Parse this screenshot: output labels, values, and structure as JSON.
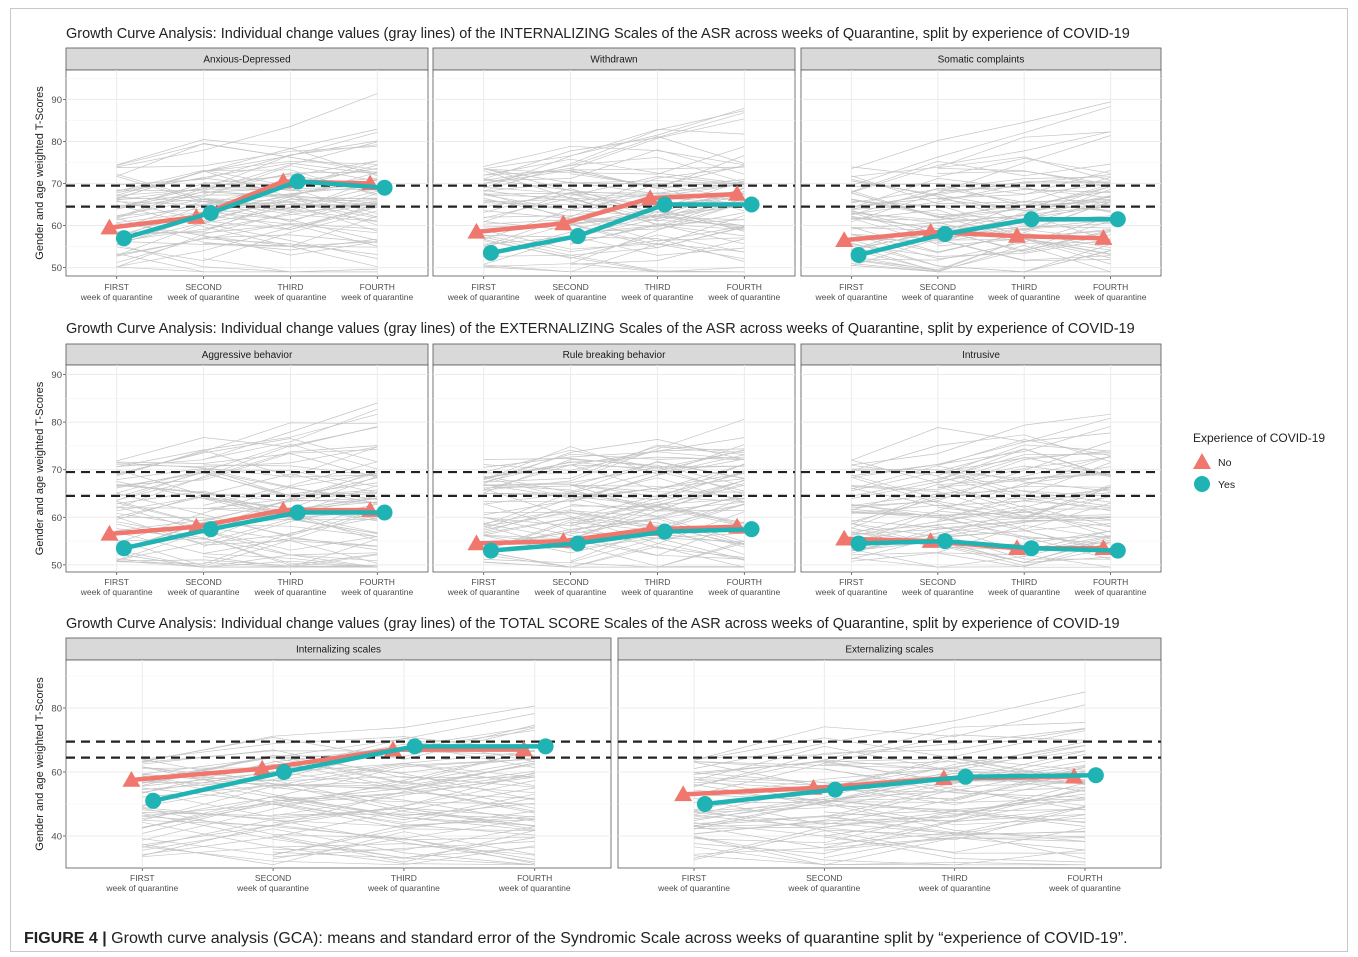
{
  "caption": {
    "label": "FIGURE 4 |",
    "text": "Growth curve analysis (GCA): means and standard error of the Syndromic Scale across weeks of quarantine split by “experience of COVID-19”."
  },
  "colors": {
    "no": "#f0776d",
    "yes": "#1fb3b3",
    "individual": "#c4c4c4",
    "reference": "#222222"
  },
  "legend": {
    "title": "Experience of COVID-19",
    "items": [
      {
        "label": "No",
        "shape": "triangle",
        "color": "#f0776d"
      },
      {
        "label": "Yes",
        "shape": "circle",
        "color": "#1fb3b3"
      }
    ]
  },
  "x_tick_labels": [
    [
      "FIRST",
      "week of quarantine"
    ],
    [
      "SECOND",
      "week of quarantine"
    ],
    [
      "THIRD",
      "week of quarantine"
    ],
    [
      "FOURTH",
      "week of quarantine"
    ]
  ],
  "ylabel": "Gender and age weighted T-Scores",
  "reference_lines": [
    64.5,
    69.5
  ],
  "chart_data": [
    {
      "type": "line",
      "title": "Growth Curve Analysis: Individual change values (gray lines) of the INTERNALIZING Scales of the ASR across weeks of Quarantine, split by experience of COVID-19",
      "ylim": [
        48,
        97
      ],
      "yticks": [
        50,
        60,
        70,
        80,
        90
      ],
      "facets": [
        {
          "name": "Anxious-Depressed",
          "series": [
            {
              "name": "No",
              "values": [
                59.5,
                62,
                70.5,
                70
              ]
            },
            {
              "name": "Yes",
              "values": [
                57,
                63,
                70.5,
                69
              ]
            }
          ]
        },
        {
          "name": "Withdrawn",
          "series": [
            {
              "name": "No",
              "values": [
                58.5,
                60.5,
                66.5,
                67.5
              ]
            },
            {
              "name": "Yes",
              "values": [
                53.5,
                57.5,
                65,
                65
              ]
            }
          ]
        },
        {
          "name": "Somatic complaints",
          "series": [
            {
              "name": "No",
              "values": [
                56.5,
                58.5,
                57.5,
                57
              ]
            },
            {
              "name": "Yes",
              "values": [
                53,
                58,
                61.5,
                61.5
              ]
            }
          ]
        }
      ]
    },
    {
      "type": "line",
      "title": "Growth Curve Analysis: Individual change values (gray lines) of the EXTERNALIZING Scales of the ASR across weeks of Quarantine, split by experience of COVID-19",
      "ylim": [
        48.5,
        92
      ],
      "yticks": [
        50,
        60,
        70,
        80,
        90
      ],
      "facets": [
        {
          "name": "Aggressive behavior",
          "series": [
            {
              "name": "No",
              "values": [
                56.5,
                58,
                61.5,
                61.5
              ]
            },
            {
              "name": "Yes",
              "values": [
                53.5,
                57.5,
                61,
                61
              ]
            }
          ]
        },
        {
          "name": "Rule breaking behavior",
          "series": [
            {
              "name": "No",
              "values": [
                54.5,
                55,
                57.5,
                58
              ]
            },
            {
              "name": "Yes",
              "values": [
                53,
                54.5,
                57,
                57.5
              ]
            }
          ]
        },
        {
          "name": "Intrusive",
          "series": [
            {
              "name": "No",
              "values": [
                55.5,
                55,
                53.5,
                53.5
              ]
            },
            {
              "name": "Yes",
              "values": [
                54.5,
                55,
                53.5,
                53
              ]
            }
          ]
        }
      ]
    },
    {
      "type": "line",
      "title": "Growth Curve Analysis: Individual change values (gray lines) of the TOTAL SCORE Scales of the ASR across weeks of Quarantine, split by experience of COVID-19",
      "ylim": [
        30,
        95
      ],
      "yticks": [
        40,
        60,
        80
      ],
      "facets": [
        {
          "name": "Internalizing scales",
          "series": [
            {
              "name": "No",
              "values": [
                57.5,
                61,
                67,
                67
              ]
            },
            {
              "name": "Yes",
              "values": [
                51,
                60,
                68,
                68
              ]
            }
          ]
        },
        {
          "name": "Externalizing scales",
          "series": [
            {
              "name": "No",
              "values": [
                53,
                55,
                58,
                58.5
              ]
            },
            {
              "name": "Yes",
              "values": [
                50,
                54.5,
                58.5,
                59
              ]
            }
          ]
        }
      ]
    }
  ]
}
